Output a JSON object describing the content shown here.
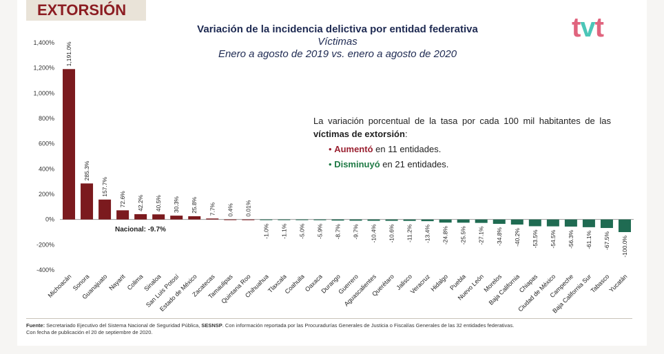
{
  "banner": "EXTORSIÓN",
  "logo": {
    "t1": "t",
    "v": "v",
    "t2": "t"
  },
  "title": "Variación de la incidencia delictiva por entidad federativa",
  "subtitle1": "Víctimas",
  "subtitle2": "Enero a agosto de 2019 vs. enero a agosto de 2020",
  "notes": {
    "lead_part1": "La variación porcentual de la tasa por cada 100 mil habitantes de las",
    "lead_bold": "víctimas de extorsión",
    "lead_end": ":",
    "bullet": "•",
    "up_word": "Aumentó",
    "up_rest": " en 11 entidades.",
    "down_word": "Disminuyó",
    "down_rest": " en 21 entidades."
  },
  "footer": {
    "label": "Fuente:",
    "text1": " Secretariado Ejecutivo del Sistema Nacional de Seguridad Pública, ",
    "sesnsp": "SESNSP",
    "text2": ". Con información reportada por las Procuradurías Generales de Justicia o Fiscalías Generales de las 32 entidades federativas.",
    "line2": "Con fecha de publicación el 20 de septiembre de 2020."
  },
  "colors": {
    "increase": "#7b1a1e",
    "decrease": "#1f6b52",
    "axis": "#999999"
  },
  "chart_data": {
    "type": "bar",
    "ylim": [
      -400,
      1400
    ],
    "yticks": [
      "-400%",
      "-200%",
      "0%",
      "200%",
      "400%",
      "600%",
      "800%",
      "1,000%",
      "1,200%",
      "1,400%"
    ],
    "ytick_values": [
      -400,
      -200,
      0,
      200,
      400,
      600,
      800,
      1000,
      1200,
      1400
    ],
    "national_label": "Nacional: -9.7%",
    "categories": [
      "Michoacán",
      "Sonora",
      "Guanajuato",
      "Nayarit",
      "Colima",
      "Sinaloa",
      "San Luis Potosí",
      "Estado de México",
      "Zacatecas",
      "Tamaulipas",
      "Quintana Roo",
      "Chihuahua",
      "Tlaxcala",
      "Coahuila",
      "Oaxaca",
      "Durango",
      "Guerrero",
      "Aguascalientes",
      "Querétaro",
      "Jalisco",
      "Veracruz",
      "Hidalgo",
      "Puebla",
      "Nuevo León",
      "Morelos",
      "Baja California",
      "Chiapas",
      "Ciudad de México",
      "Campeche",
      "Baja California Sur",
      "Tabasco",
      "Yucatán"
    ],
    "values": [
      1191.0,
      285.3,
      157.7,
      72.6,
      42.2,
      40.5,
      30.3,
      25.8,
      7.7,
      0.4,
      0.01,
      -1.0,
      -1.1,
      -5.0,
      -5.9,
      -8.7,
      -9.7,
      -10.4,
      -10.6,
      -11.2,
      -13.4,
      -24.8,
      -25.5,
      -27.1,
      -34.8,
      -40.2,
      -53.5,
      -54.5,
      -56.3,
      -61.1,
      -67.5,
      -100.0
    ],
    "value_labels": [
      "1,191.0%",
      "285.3%",
      "157.7%",
      "72.6%",
      "42.2%",
      "40.5%",
      "30.3%",
      "25.8%",
      "7.7%",
      "0.4%",
      "0.01%",
      "-1.0%",
      "-1.1%",
      "-5.0%",
      "-5.9%",
      "-8.7%",
      "-9.7%",
      "-10.4%",
      "-10.6%",
      "-11.2%",
      "-13.4%",
      "-24.8%",
      "-25.5%",
      "-27.1%",
      "-34.8%",
      "-40.2%",
      "-53.5%",
      "-54.5%",
      "-56.3%",
      "-61.1%",
      "-67.5%",
      "-100.0%"
    ]
  }
}
